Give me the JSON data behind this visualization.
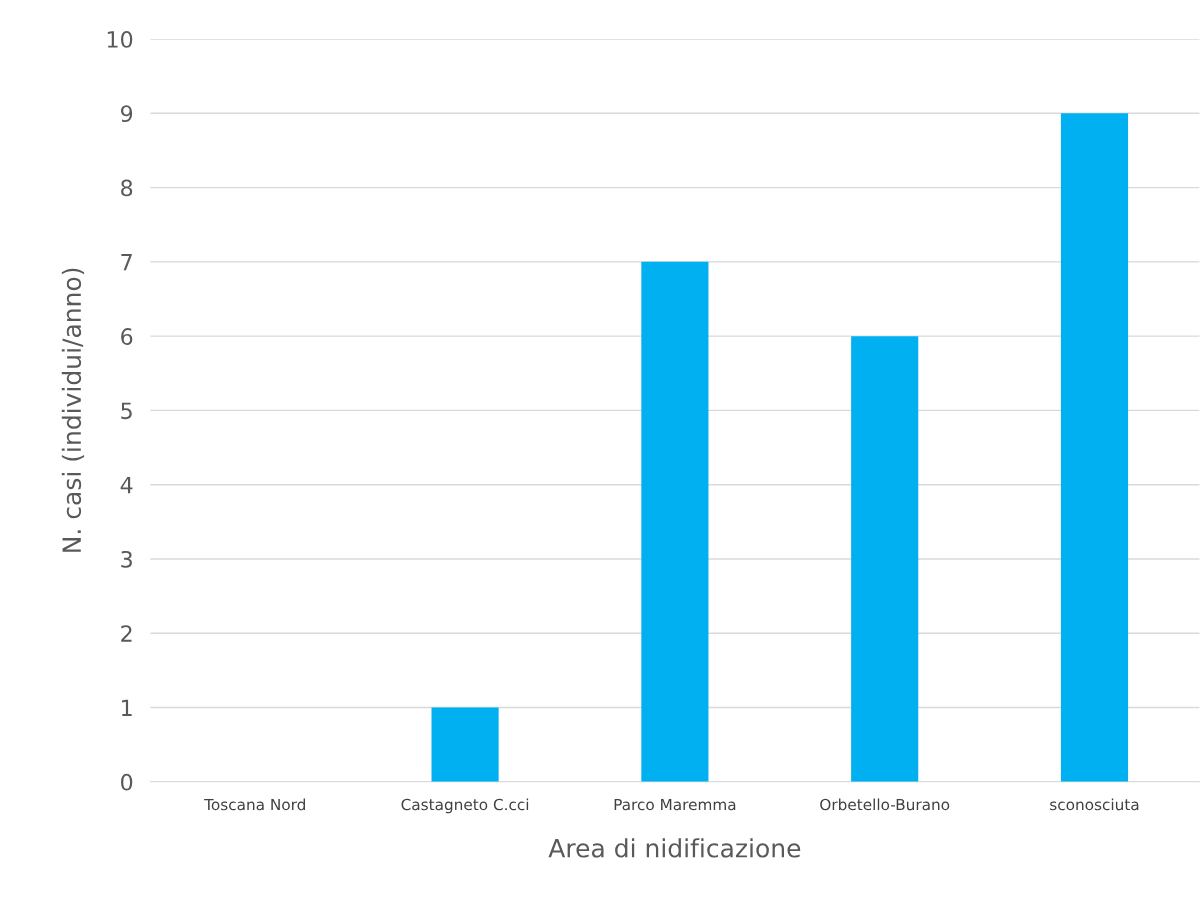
{
  "chart_data": {
    "type": "bar",
    "xlabel": "Area di nidificazione",
    "ylabel": "N. casi (individui/anno)",
    "categories": [
      "Toscana Nord",
      "Castagneto C.cci",
      "Parco Maremma",
      "Orbetello-Burano",
      "sconosciuta"
    ],
    "values": [
      0,
      1,
      7,
      6,
      9
    ],
    "color": "#00b0f0",
    "ylim": [
      0,
      10
    ],
    "yticks": [
      0,
      1,
      2,
      3,
      4,
      5,
      6,
      7,
      8,
      9,
      10
    ],
    "grid": "y"
  }
}
